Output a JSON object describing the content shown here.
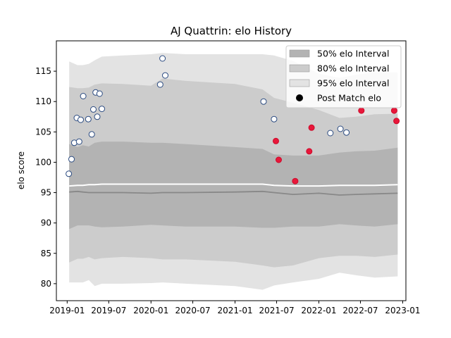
{
  "chart_data": {
    "type": "scatter",
    "title": "AJ Quattrin: elo History",
    "xlabel": "",
    "ylabel": "elo score",
    "xlim": [
      "2018-11-15",
      "2023-01-15"
    ],
    "ylim": [
      77.2,
      120.0
    ],
    "x_ticks": [
      "2019-01",
      "2019-07",
      "2020-01",
      "2020-07",
      "2021-01",
      "2021-07",
      "2022-01",
      "2022-07",
      "2023-01"
    ],
    "y_ticks": [
      80,
      85,
      90,
      95,
      100,
      105,
      110,
      115
    ],
    "grid": false,
    "legend_position": "top-right",
    "legend": [
      {
        "label": "50% elo Interval",
        "swatch": "band50"
      },
      {
        "label": "80% elo Interval",
        "swatch": "band80"
      },
      {
        "label": "95% elo Interval",
        "swatch": "band95"
      },
      {
        "label": "Post Match elo",
        "swatch": "dot"
      }
    ],
    "colors": {
      "band50": "#b3b3b3",
      "band80": "#cccccc",
      "band95": "#e3e3e3",
      "median_line": "#888888",
      "upper_line": "#ffffff",
      "marker_blue_edge": "#2a4a80",
      "marker_blue_fill": "#ffffff",
      "marker_red_fill": "#e8173a",
      "marker_red_edge": "#cc0a2a"
    },
    "bands": {
      "x": [
        "2019-01-10",
        "2019-02-15",
        "2019-03-10",
        "2019-04-05",
        "2019-05-01",
        "2019-06-01",
        "2019-09-01",
        "2020-01-01",
        "2020-02-20",
        "2020-06-01",
        "2021-01-01",
        "2021-05-01",
        "2021-06-20",
        "2021-09-10",
        "2022-01-01",
        "2022-04-01",
        "2022-06-10",
        "2022-09-01",
        "2022-12-10"
      ],
      "p95_upper": [
        116.6,
        116.0,
        116.0,
        116.2,
        116.8,
        117.4,
        117.6,
        117.8,
        118.0,
        117.8,
        117.8,
        117.8,
        117.6,
        116.7,
        114.6,
        113.9,
        114.4,
        114.8,
        114.8
      ],
      "p80_upper": [
        112.4,
        112.2,
        112.2,
        112.3,
        112.8,
        113.0,
        112.9,
        112.6,
        113.8,
        113.4,
        112.9,
        112.0,
        110.6,
        109.8,
        108.6,
        107.3,
        107.5,
        107.9,
        108.0
      ],
      "p50_upper": [
        103.0,
        102.5,
        102.8,
        102.6,
        103.2,
        103.4,
        103.4,
        103.2,
        103.2,
        103.0,
        102.5,
        102.2,
        101.3,
        101.1,
        101.1,
        101.6,
        101.8,
        101.9,
        102.4
      ],
      "upper_line": [
        96.1,
        96.2,
        96.2,
        96.3,
        96.3,
        96.4,
        96.4,
        96.4,
        96.4,
        96.4,
        96.4,
        96.4,
        96.2,
        96.1,
        96.1,
        96.2,
        96.2,
        96.2,
        96.3
      ],
      "median": [
        95.1,
        95.2,
        95.1,
        95.0,
        95.0,
        95.0,
        95.0,
        94.9,
        95.0,
        95.0,
        95.1,
        95.2,
        95.0,
        94.7,
        94.9,
        94.6,
        94.7,
        94.8,
        94.9
      ],
      "p50_lower": [
        89.0,
        89.6,
        89.6,
        89.6,
        89.4,
        89.3,
        89.4,
        89.7,
        89.6,
        89.4,
        89.4,
        89.2,
        89.2,
        89.4,
        89.4,
        89.8,
        89.6,
        89.4,
        89.8
      ],
      "p80_lower": [
        83.5,
        84.1,
        84.1,
        84.4,
        84.0,
        84.2,
        84.4,
        84.2,
        84.0,
        84.0,
        83.6,
        83.0,
        82.7,
        83.0,
        84.2,
        84.6,
        84.6,
        84.4,
        84.8
      ],
      "p95_lower": [
        80.2,
        80.2,
        80.2,
        80.6,
        79.6,
        80.0,
        80.0,
        80.1,
        80.2,
        80.0,
        79.6,
        79.0,
        79.7,
        80.2,
        80.8,
        81.8,
        81.4,
        81.0,
        81.2
      ]
    },
    "series": [
      {
        "name": "Post Match elo",
        "marker": "blue",
        "x": [
          "2019-01-08",
          "2019-01-20",
          "2019-02-01",
          "2019-02-12",
          "2019-02-22",
          "2019-03-01",
          "2019-03-12",
          "2019-04-03",
          "2019-04-18",
          "2019-04-25",
          "2019-05-05",
          "2019-05-12",
          "2019-05-22",
          "2019-06-01",
          "2020-02-10",
          "2020-02-20",
          "2020-03-03",
          "2021-05-05",
          "2021-06-20",
          "2022-02-20",
          "2022-04-05",
          "2022-05-01"
        ],
        "y": [
          98.1,
          100.5,
          103.2,
          107.3,
          103.4,
          107.0,
          110.9,
          107.1,
          104.6,
          108.7,
          111.5,
          107.5,
          111.3,
          108.8,
          112.8,
          117.1,
          114.3,
          110.0,
          107.1,
          104.8,
          105.5,
          104.9
        ]
      },
      {
        "name": "Post Match elo",
        "marker": "red",
        "x": [
          "2021-06-28",
          "2021-07-10",
          "2021-09-20",
          "2021-11-20",
          "2021-11-30",
          "2022-07-05",
          "2022-11-25",
          "2022-12-05"
        ],
        "y": [
          103.5,
          100.4,
          96.9,
          101.8,
          105.7,
          108.5,
          108.5,
          106.8
        ]
      }
    ]
  }
}
